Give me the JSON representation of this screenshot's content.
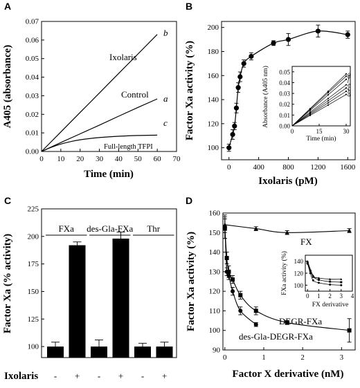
{
  "chart_data": [
    {
      "panel": "A",
      "type": "line",
      "xlabel": "Time (min)",
      "ylabel": "A405 (absorbance)",
      "xlim": [
        0,
        70
      ],
      "ylim": [
        0,
        0.07
      ],
      "xticks": [
        0,
        10,
        20,
        30,
        40,
        50,
        60,
        70
      ],
      "yticks": [
        0,
        0.01,
        0.02,
        0.03,
        0.04,
        0.05,
        0.06,
        0.07
      ],
      "xtick_labels": [
        "0",
        "10",
        "20",
        "30",
        "40",
        "50",
        "60",
        "70"
      ],
      "ytick_labels": [
        "0.00",
        "0.01",
        "0.02",
        "0.03",
        "0.04",
        "0.05",
        "0.06",
        "0.07"
      ],
      "series": [
        {
          "name": "Ixolaris",
          "letter": "b",
          "x": [
            0,
            10,
            20,
            30,
            40,
            50,
            60
          ],
          "y": [
            0,
            0.0105,
            0.021,
            0.0315,
            0.042,
            0.0525,
            0.063
          ]
        },
        {
          "name": "Control",
          "letter": "a",
          "x": [
            0,
            10,
            20,
            30,
            40,
            50,
            60
          ],
          "y": [
            0,
            0.0048,
            0.0095,
            0.0142,
            0.019,
            0.0237,
            0.0283
          ]
        },
        {
          "name": "Full-length TFPI",
          "letter": "c",
          "x": [
            0,
            5,
            10,
            15,
            20,
            30,
            40,
            50,
            60
          ],
          "y": [
            0,
            0.0022,
            0.004,
            0.0053,
            0.0063,
            0.0075,
            0.0082,
            0.0086,
            0.0088
          ]
        }
      ]
    },
    {
      "panel": "B",
      "type": "line",
      "xlabel": "Ixolaris (pM)",
      "ylabel": "Factor Xa activity (%)",
      "xlim": [
        -100,
        1700
      ],
      "ylim": [
        90,
        205
      ],
      "xticks": [
        0,
        400,
        800,
        1200,
        1600
      ],
      "yticks": [
        100,
        120,
        140,
        160,
        180,
        200
      ],
      "xtick_labels": [
        "0",
        "400",
        "800",
        "1200",
        "1600"
      ],
      "ytick_labels": [
        "100",
        "120",
        "140",
        "160",
        "180",
        "200"
      ],
      "series": [
        {
          "x": [
            0,
            50,
            75,
            100,
            125,
            150,
            200,
            300,
            600,
            800,
            1200,
            1600
          ],
          "y": [
            100,
            111,
            118,
            133,
            150,
            159,
            170,
            176,
            187,
            190,
            197,
            194
          ],
          "err": [
            3,
            4,
            3,
            4,
            4,
            4,
            3,
            3,
            2,
            5,
            5,
            3
          ]
        }
      ],
      "inset": {
        "type": "line",
        "xlabel": "Time (min)",
        "ylabel": "Absorbance (A405 nm)",
        "xlim": [
          0,
          30
        ],
        "ylim": [
          0,
          0.055
        ],
        "xticks": [
          0,
          15,
          30
        ],
        "yticks": [
          0,
          0.01,
          0.02,
          0.03,
          0.04,
          0.05
        ],
        "xtick_labels": [
          "0",
          "15",
          "30"
        ],
        "ytick_labels": [
          "0.00",
          "0.01",
          "0.02",
          "0.03",
          "0.04",
          "0.05"
        ],
        "series": [
          {
            "letter": "d",
            "x": [
              0,
              10,
              20,
              30
            ],
            "y": [
              0,
              0.016,
              0.032,
              0.048
            ]
          },
          {
            "letter": "e",
            "x": [
              0,
              10,
              20,
              30
            ],
            "y": [
              0,
              0.0153,
              0.0307,
              0.046
            ]
          },
          {
            "letter": "f",
            "x": [
              0,
              10,
              20,
              30
            ],
            "y": [
              0,
              0.0143,
              0.0287,
              0.043
            ]
          },
          {
            "letter": "e",
            "x": [
              0,
              10,
              20,
              30
            ],
            "y": [
              0,
              0.0127,
              0.0253,
              0.038
            ]
          },
          {
            "letter": "c",
            "x": [
              0,
              10,
              20,
              30
            ],
            "y": [
              0,
              0.0117,
              0.0233,
              0.035
            ]
          },
          {
            "letter": "b",
            "x": [
              0,
              10,
              20,
              30
            ],
            "y": [
              0,
              0.0107,
              0.0213,
              0.032
            ]
          },
          {
            "letter": "a",
            "x": [
              0,
              10,
              20,
              30
            ],
            "y": [
              0,
              0.0097,
              0.0193,
              0.029
            ]
          }
        ]
      }
    },
    {
      "panel": "C",
      "type": "bar",
      "ylabel": "Factor Xa (% activity)",
      "xlabel": "Ixolaris",
      "ylim": [
        90,
        225
      ],
      "yticks": [
        100,
        125,
        150,
        175,
        200,
        225
      ],
      "ytick_labels": [
        "100",
        "125",
        "150",
        "175",
        "200",
        "225"
      ],
      "categories": [
        "-",
        "+",
        "-",
        "+",
        "-",
        "+"
      ],
      "values": [
        100,
        192,
        100,
        198,
        100,
        100
      ],
      "errors": [
        4,
        3,
        6,
        6,
        3,
        4
      ],
      "groups": [
        {
          "label": "FXa",
          "bars": [
            0,
            1
          ]
        },
        {
          "label": "des-Gla-FXa",
          "bars": [
            2,
            3
          ]
        },
        {
          "label": "Thr",
          "bars": [
            4,
            5
          ]
        }
      ]
    },
    {
      "panel": "D",
      "type": "line",
      "xlabel": "Factor X derivative (nM)",
      "ylabel": "Factor Xa activity (%)",
      "xlim": [
        -0.05,
        3.35
      ],
      "ylim": [
        90,
        160
      ],
      "xticks": [
        0,
        1,
        2,
        3
      ],
      "yticks": [
        90,
        100,
        110,
        120,
        130,
        140,
        150,
        160
      ],
      "xtick_labels": [
        "0",
        "1",
        "2",
        "3"
      ],
      "ytick_labels": [
        "90",
        "100",
        "110",
        "120",
        "130",
        "140",
        "150",
        "160"
      ],
      "series": [
        {
          "name": "FX",
          "marker": "triangle",
          "x": [
            0,
            0.8,
            1.6,
            3.2
          ],
          "y": [
            154,
            152,
            150,
            151
          ],
          "err": [
            4,
            1,
            1,
            1
          ]
        },
        {
          "name": "DEGR-FXa",
          "marker": "square",
          "x": [
            0,
            0.05,
            0.1,
            0.2,
            0.4,
            0.8,
            1.6,
            3.2
          ],
          "y": [
            152,
            137,
            130,
            126,
            118,
            110,
            104,
            100
          ],
          "err": [
            5,
            3,
            3,
            2,
            2,
            2,
            1,
            6
          ]
        },
        {
          "name": "des-Gla-DEGR-FXa",
          "marker": "circle",
          "x": [
            0,
            0.05,
            0.1,
            0.2,
            0.4,
            0.8
          ],
          "y": [
            153,
            130,
            128,
            120,
            110,
            103
          ],
          "err": [
            6,
            2,
            2,
            2,
            2,
            1
          ]
        }
      ],
      "inset": {
        "type": "line",
        "xlabel": "FX derivative",
        "ylabel": "FXa activity (%)",
        "xlim": [
          -0.2,
          4
        ],
        "ylim": [
          90,
          150
        ],
        "xticks": [
          0,
          1,
          2,
          3,
          4
        ],
        "yticks": [
          100,
          120,
          140
        ],
        "xtick_labels": [
          "0",
          "1",
          "2",
          "3",
          "4"
        ],
        "ytick_labels": [
          "100",
          "120",
          "140"
        ],
        "series": [
          {
            "marker": "triangle",
            "x": [
              0,
              0.5,
              1,
              2,
              3
            ],
            "y": [
              140,
              116,
              112,
              110,
              110
            ]
          },
          {
            "marker": "square",
            "x": [
              0,
              0.25,
              0.5,
              1,
              2,
              3
            ],
            "y": [
              138,
              124,
              114,
              109,
              106,
              105
            ]
          },
          {
            "marker": "circle",
            "x": [
              0,
              0.25,
              0.5,
              1,
              2,
              3
            ],
            "y": [
              136,
              120,
              108,
              104,
              101,
              100
            ]
          }
        ]
      }
    }
  ]
}
